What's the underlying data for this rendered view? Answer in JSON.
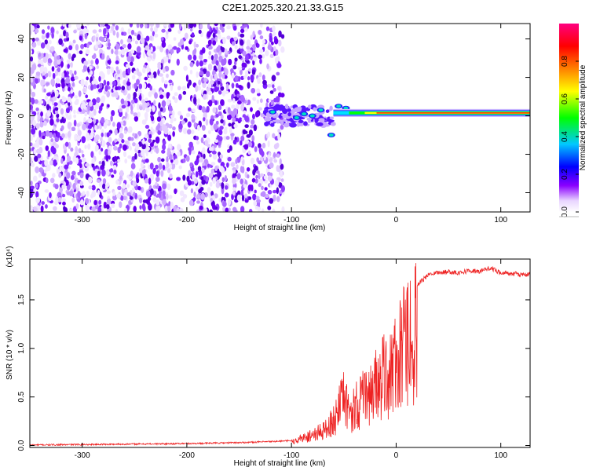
{
  "title": "C2E1.2025.320.21.33.G15",
  "chart_data": [
    {
      "type": "heatmap",
      "title": "",
      "xlabel": "Height of straight line (km)",
      "ylabel": "Frequency (Hz)",
      "xlim": [
        -350,
        128
      ],
      "ylim": [
        -50,
        48
      ],
      "xticks": [
        -300,
        -200,
        -100,
        0,
        100
      ],
      "xtick_labels": [
        "-300",
        "-200",
        "-100",
        "0",
        "100"
      ],
      "yticks": [
        -40,
        -20,
        0,
        20,
        40
      ],
      "ytick_labels": [
        "-40",
        "-20",
        "0",
        "20",
        "40"
      ],
      "colorbar": {
        "label": "Normalized spectral amplitude",
        "range": [
          0,
          1
        ],
        "ticks": [
          0.0,
          0.2,
          0.4,
          0.6,
          0.8
        ],
        "tick_labels": [
          "0.0",
          "0.2",
          "0.4",
          "0.6",
          "0.8"
        ],
        "colors": [
          "#ffffff",
          "#8a00ff",
          "#0000ff",
          "#00c8ff",
          "#00ff00",
          "#ffff00",
          "#ff8000",
          "#ff0000",
          "#ff0080"
        ]
      },
      "regions": [
        {
          "name": "noise-scatter",
          "x": [
            -350,
            -108
          ],
          "freq": [
            -50,
            48
          ],
          "amplitude": [
            0.05,
            0.15
          ]
        },
        {
          "name": "signal-onset",
          "x": [
            -125,
            -60
          ],
          "freq": [
            -12,
            12
          ],
          "amplitude": [
            0.1,
            0.35
          ]
        },
        {
          "name": "carrier-band",
          "x": [
            -60,
            128
          ],
          "freq_center": 1.5,
          "amplitude": [
            0.7,
            1.0
          ]
        }
      ]
    },
    {
      "type": "line",
      "title": "",
      "xlabel": "Height of straight line (km)",
      "ylabel": "SNR (10 * v/v)",
      "scale_label": "(x10⁴)",
      "xlim": [
        -350,
        128
      ],
      "ylim": [
        -0.02,
        1.92
      ],
      "xticks": [
        -300,
        -200,
        -100,
        0,
        100
      ],
      "xtick_labels": [
        "-300",
        "-200",
        "-100",
        "0",
        "100"
      ],
      "yticks": [
        0.0,
        0.5,
        1.0,
        1.5
      ],
      "ytick_labels": [
        "0.0",
        "0.5",
        "1.0",
        "1.5"
      ],
      "color": "#ee2222",
      "series": [
        {
          "name": "SNR",
          "x": [
            -350,
            -300,
            -250,
            -200,
            -150,
            -120,
            -100,
            -90,
            -80,
            -70,
            -60,
            -55,
            -50,
            -45,
            -40,
            -35,
            -30,
            -25,
            -20,
            -15,
            -10,
            -5,
            0,
            5,
            10,
            15,
            20,
            25,
            30,
            35,
            40,
            50,
            60,
            70,
            80,
            90,
            100,
            110,
            120,
            128
          ],
          "y": [
            0.005,
            0.01,
            0.015,
            0.02,
            0.03,
            0.04,
            0.05,
            0.1,
            0.15,
            0.2,
            0.35,
            0.5,
            0.65,
            0.45,
            0.55,
            0.6,
            0.7,
            0.75,
            0.85,
            0.9,
            1.0,
            1.05,
            1.15,
            1.3,
            1.45,
            1.55,
            1.65,
            1.7,
            1.75,
            1.78,
            1.78,
            1.79,
            1.78,
            1.8,
            1.79,
            1.83,
            1.78,
            1.77,
            1.76,
            1.76
          ]
        }
      ]
    }
  ]
}
